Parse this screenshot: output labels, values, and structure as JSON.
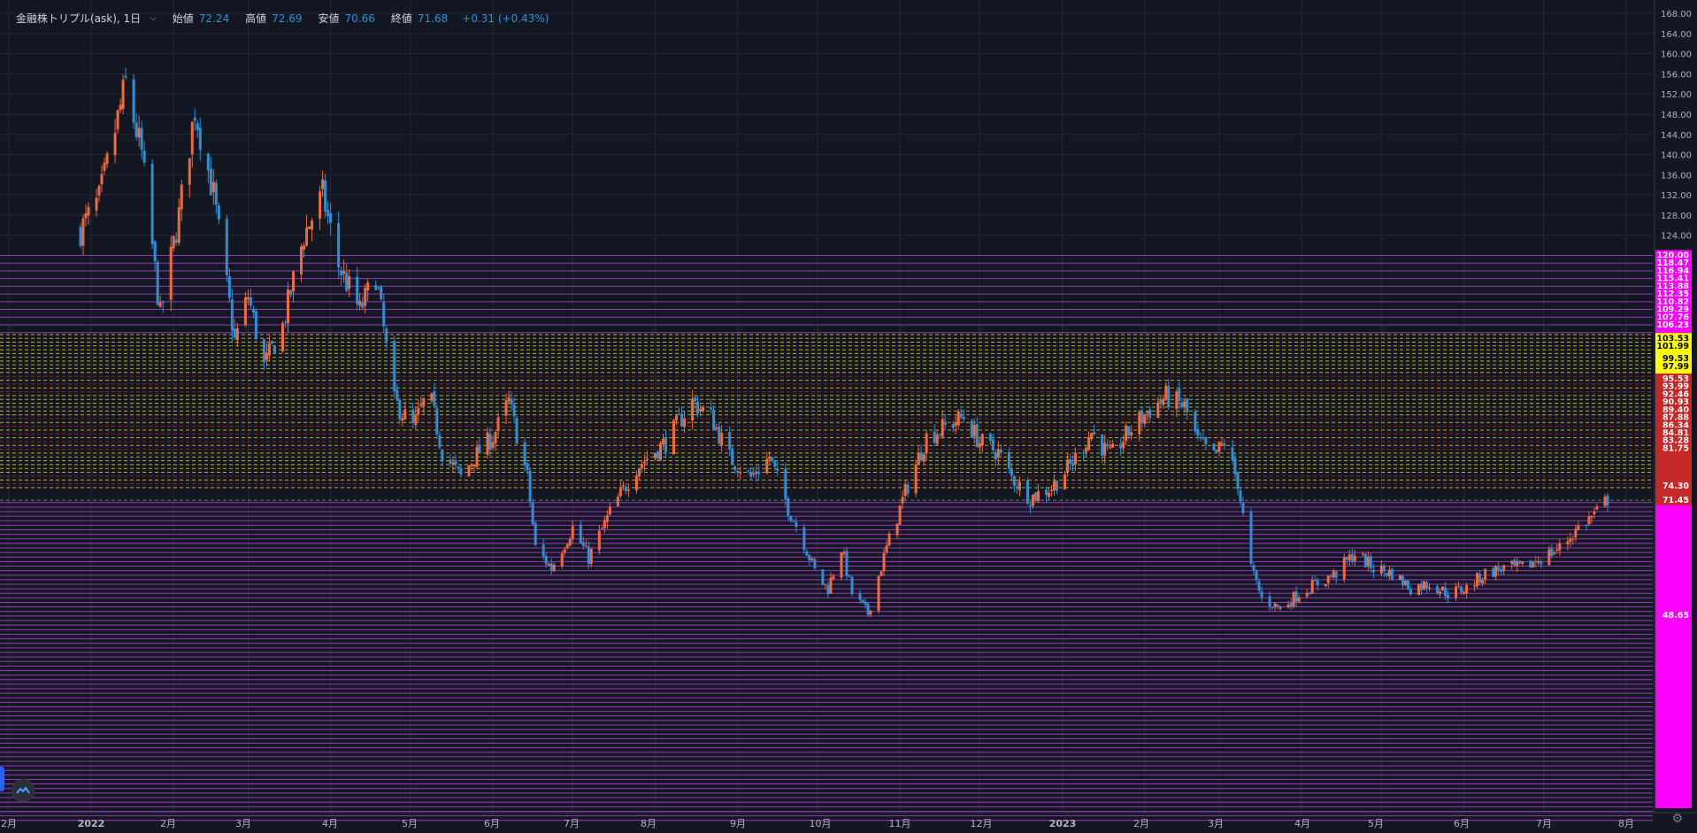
{
  "legend": {
    "symbol": "金融株トリプル(ask), 1日",
    "open_label": "始値",
    "open": "72.24",
    "high_label": "高値",
    "high": "72.69",
    "low_label": "安値",
    "low": "70.66",
    "close_label": "終値",
    "close": "71.68",
    "change": "+0.31 (+0.43%)"
  },
  "chart_data": {
    "type": "candlestick",
    "y_ticks": [
      "168.00",
      "164.00",
      "160.00",
      "156.00",
      "152.00",
      "148.00",
      "144.00",
      "140.00",
      "136.00",
      "132.00",
      "128.00",
      "124.00"
    ],
    "x_ticks": [
      "2月",
      "2022",
      "2月",
      "3月",
      "4月",
      "5月",
      "6月",
      "7月",
      "8月",
      "9月",
      "10月",
      "11月",
      "12月",
      "2023",
      "2月",
      "3月",
      "4月",
      "5月",
      "6月",
      "7月",
      "8月"
    ],
    "level_labels": {
      "magenta_upper": [
        "120.00",
        "118.47",
        "116.94",
        "115.41",
        "113.88",
        "112.35",
        "110.82",
        "109.29",
        "107.76",
        "106.23"
      ],
      "yellow": [
        "103.53",
        "101.99",
        "99.53",
        "97.99"
      ],
      "red": [
        "95.53",
        "93.99",
        "92.46",
        "90.93",
        "89.40",
        "87.88",
        "86.34",
        "84.81",
        "83.28",
        "81.75",
        "74.30",
        "71.45"
      ],
      "magenta_lower": [
        "48.65"
      ]
    },
    "anchors": [
      [
        "2021-12-28",
        125
      ],
      [
        "2022-01-04",
        131
      ],
      [
        "2022-01-14",
        154
      ],
      [
        "2022-01-20",
        140
      ],
      [
        "2022-01-27",
        108
      ],
      [
        "2022-02-03",
        128
      ],
      [
        "2022-02-09",
        149
      ],
      [
        "2022-02-16",
        132
      ],
      [
        "2022-02-24",
        103
      ],
      [
        "2022-03-01",
        112
      ],
      [
        "2022-03-07",
        98
      ],
      [
        "2022-03-14",
        106
      ],
      [
        "2022-03-22",
        124
      ],
      [
        "2022-03-29",
        132
      ],
      [
        "2022-04-04",
        118
      ],
      [
        "2022-04-12",
        109
      ],
      [
        "2022-04-18",
        116
      ],
      [
        "2022-04-25",
        91
      ],
      [
        "2022-05-02",
        86
      ],
      [
        "2022-05-08",
        93
      ],
      [
        "2022-05-13",
        81
      ],
      [
        "2022-05-20",
        76
      ],
      [
        "2022-05-25",
        80
      ],
      [
        "2022-06-01",
        84
      ],
      [
        "2022-06-07",
        91
      ],
      [
        "2022-06-14",
        76
      ],
      [
        "2022-06-17",
        62
      ],
      [
        "2022-06-23",
        58
      ],
      [
        "2022-07-01",
        66
      ],
      [
        "2022-07-07",
        60
      ],
      [
        "2022-07-15",
        69
      ],
      [
        "2022-07-25",
        78
      ],
      [
        "2022-08-05",
        83
      ],
      [
        "2022-08-15",
        91
      ],
      [
        "2022-08-22",
        88
      ],
      [
        "2022-08-29",
        80
      ],
      [
        "2022-09-06",
        76
      ],
      [
        "2022-09-13",
        80
      ],
      [
        "2022-09-20",
        70
      ],
      [
        "2022-09-26",
        63
      ],
      [
        "2022-10-01",
        56
      ],
      [
        "2022-10-05",
        54
      ],
      [
        "2022-10-10",
        62
      ],
      [
        "2022-10-14",
        53
      ],
      [
        "2022-10-20",
        49
      ],
      [
        "2022-10-27",
        62
      ],
      [
        "2022-11-03",
        73
      ],
      [
        "2022-11-11",
        84
      ],
      [
        "2022-11-18",
        86
      ],
      [
        "2022-11-25",
        88
      ],
      [
        "2022-12-01",
        83
      ],
      [
        "2022-12-08",
        81
      ],
      [
        "2022-12-13",
        76
      ],
      [
        "2022-12-20",
        72
      ],
      [
        "2022-12-28",
        74
      ],
      [
        "2023-01-05",
        79
      ],
      [
        "2023-01-12",
        85
      ],
      [
        "2023-01-19",
        80
      ],
      [
        "2023-01-26",
        85
      ],
      [
        "2023-02-02",
        89
      ],
      [
        "2023-02-09",
        92
      ],
      [
        "2023-02-16",
        90
      ],
      [
        "2023-02-21",
        83
      ],
      [
        "2023-02-27",
        80
      ],
      [
        "2023-03-03",
        83
      ],
      [
        "2023-03-08",
        75
      ],
      [
        "2023-03-13",
        58
      ],
      [
        "2023-03-17",
        52
      ],
      [
        "2023-03-24",
        50
      ],
      [
        "2023-03-31",
        53
      ],
      [
        "2023-04-07",
        55
      ],
      [
        "2023-04-14",
        57
      ],
      [
        "2023-04-21",
        61
      ],
      [
        "2023-04-28",
        58
      ],
      [
        "2023-05-05",
        57
      ],
      [
        "2023-05-12",
        54
      ],
      [
        "2023-05-19",
        55
      ],
      [
        "2023-05-26",
        53
      ],
      [
        "2023-06-02",
        54
      ],
      [
        "2023-06-09",
        57
      ],
      [
        "2023-06-16",
        58
      ],
      [
        "2023-06-23",
        58
      ],
      [
        "2023-06-30",
        60
      ],
      [
        "2023-07-07",
        62
      ],
      [
        "2023-07-14",
        66
      ],
      [
        "2023-07-21",
        69
      ],
      [
        "2023-07-25",
        71.68
      ]
    ]
  },
  "colors": {
    "background": "#131722",
    "up": "#ef6a3c",
    "down": "#2f8fd6",
    "magenta": "#ff00ff",
    "yellow": "#ffff00",
    "red": "#c62828",
    "grid": "#242936",
    "axis_text": "#b2b5be",
    "level_line_purple": "#b23fd6",
    "level_line_yellow": "#e6c619",
    "level_line_red": "#b71c1c"
  }
}
